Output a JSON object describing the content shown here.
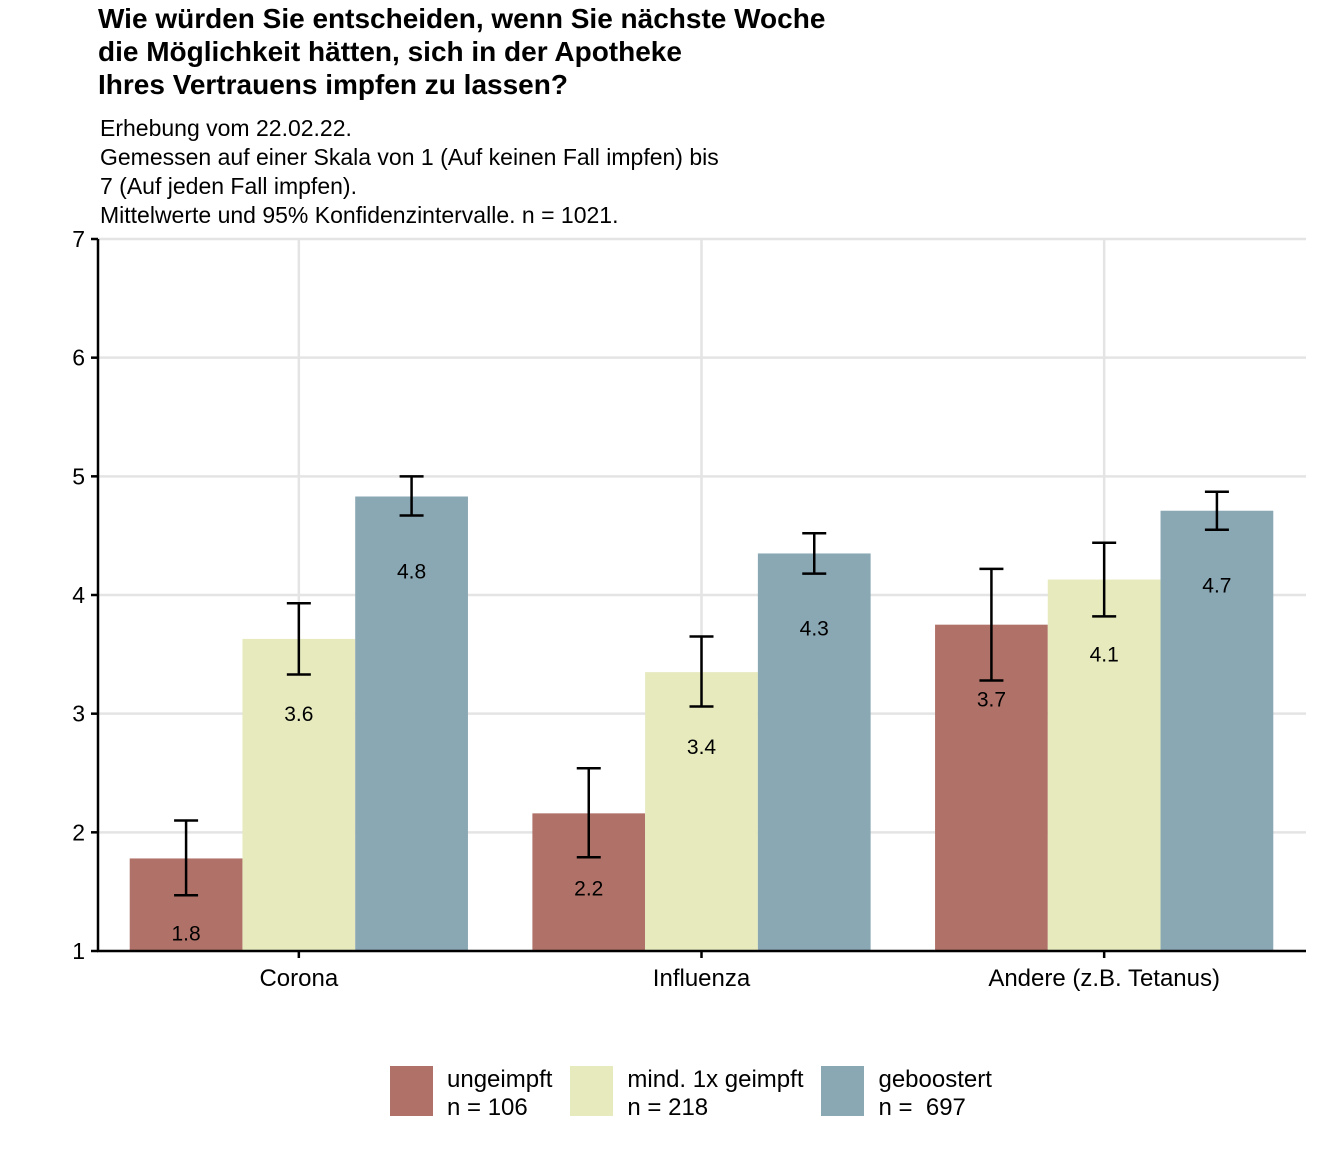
{
  "chart_data": {
    "type": "bar",
    "title": [
      "Wie würden Sie entscheiden, wenn Sie nächste Woche",
      "die Möglichkeit hätten, sich in der Apotheke",
      "Ihres Vertrauens impfen zu lassen?"
    ],
    "subtitle": [
      "Erhebung vom 22.02.22.",
      "Gemessen auf einer Skala von 1 (Auf keinen Fall impfen) bis",
      "7 (Auf jeden Fall impfen).",
      "Mittelwerte und 95% Konfidenzintervalle. n = 1021."
    ],
    "xlabel": "",
    "ylabel": "",
    "ylim": [
      1,
      7
    ],
    "yticks": [
      "1",
      "2",
      "3",
      "4",
      "5",
      "6",
      "7"
    ],
    "categories": [
      "Corona",
      "Influenza",
      "Andere (z.B. Tetanus)"
    ],
    "grid": true,
    "legend_position": "bottom",
    "series": [
      {
        "name": "ungeimpft",
        "legend_label": [
          "ungeimpft",
          "n = 106"
        ],
        "color": "#b07268",
        "values": [
          1.78,
          2.16,
          3.75
        ],
        "ci_low": [
          1.47,
          1.79,
          3.28
        ],
        "ci_high": [
          2.1,
          2.54,
          4.22
        ],
        "labels": [
          "1.8",
          "2.2",
          "3.7"
        ]
      },
      {
        "name": "mind. 1x geimpft",
        "legend_label": [
          "mind. 1x geimpft",
          "n = 218"
        ],
        "color": "#e6eabd",
        "values": [
          3.63,
          3.35,
          4.13
        ],
        "ci_low": [
          3.33,
          3.06,
          3.82
        ],
        "ci_high": [
          3.93,
          3.65,
          4.44
        ],
        "labels": [
          "3.6",
          "3.4",
          "4.1"
        ]
      },
      {
        "name": "geboostert",
        "legend_label": [
          "geboostert",
          "n =  697"
        ],
        "color": "#8aa7b4",
        "values": [
          4.83,
          4.35,
          4.71
        ],
        "ci_low": [
          4.67,
          4.18,
          4.55
        ],
        "ci_high": [
          5.0,
          4.52,
          4.87
        ],
        "labels": [
          "4.8",
          "4.3",
          "4.7"
        ]
      }
    ]
  }
}
